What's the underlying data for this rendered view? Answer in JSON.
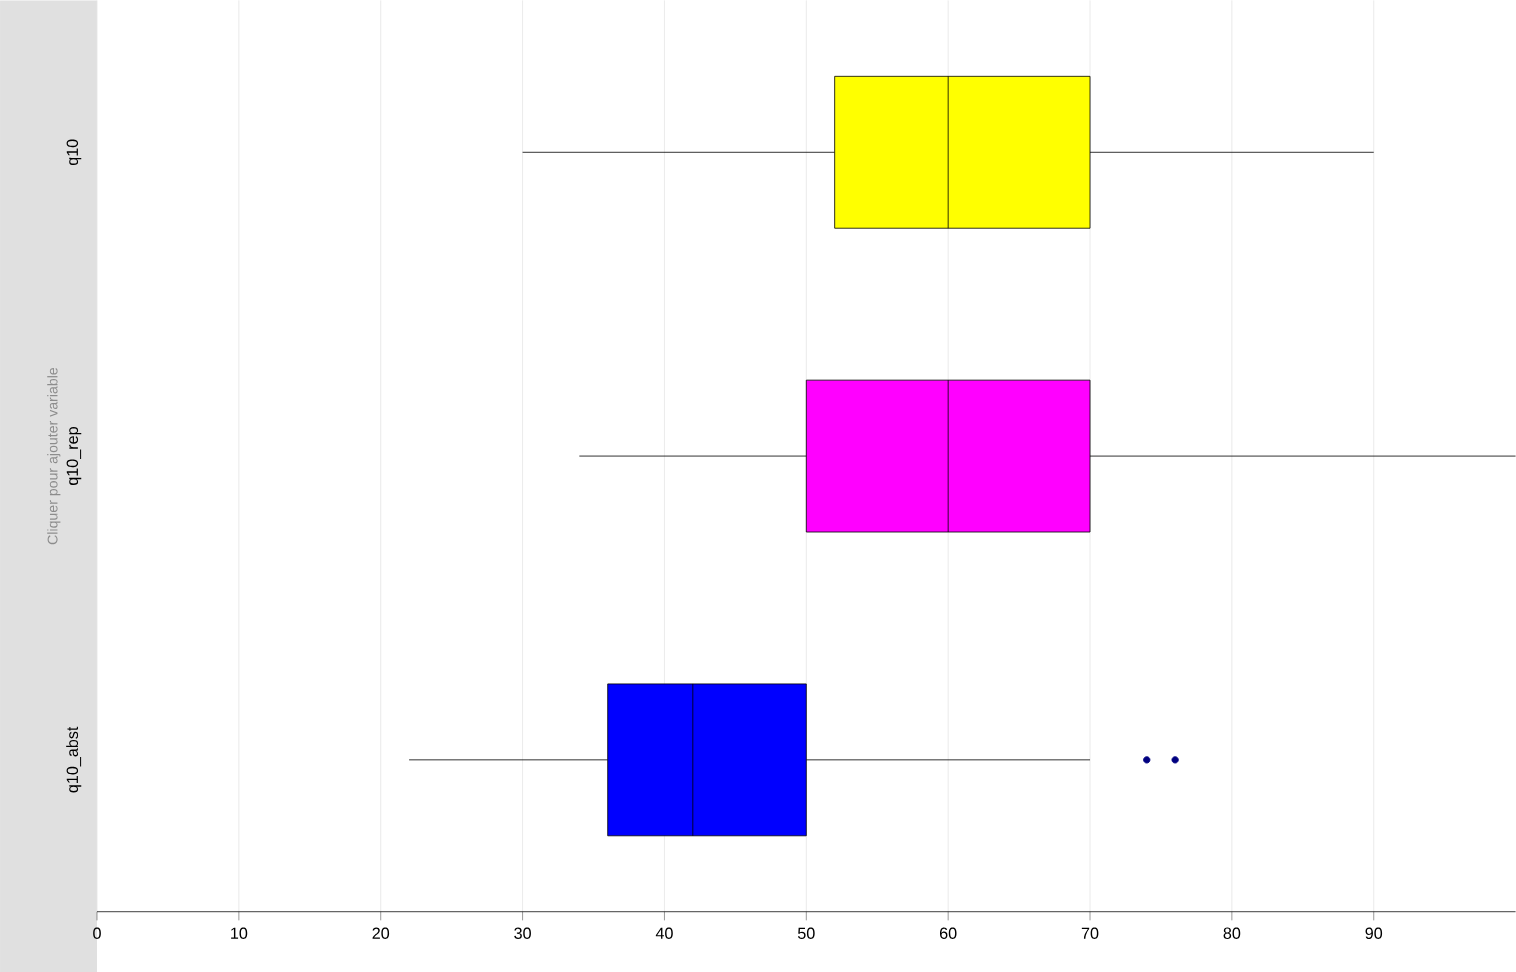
{
  "chart_data": {
    "type": "box",
    "orientation": "horizontal",
    "ylabel": "Cliquer pour ajouter variable",
    "categories": [
      "q10",
      "q10_rep",
      "q10_abst"
    ],
    "colors": [
      "#ffff00",
      "#ff00ff",
      "#0000ff"
    ],
    "boxes": [
      {
        "low": 30,
        "q1": 52,
        "median": 60,
        "q3": 70,
        "high": 90
      },
      {
        "low": 34,
        "q1": 50,
        "median": 60,
        "q3": 70,
        "high": 100
      },
      {
        "low": 22,
        "q1": 36,
        "median": 42,
        "q3": 50,
        "high": 70,
        "outliers": [
          74,
          76
        ]
      }
    ],
    "xlim": [
      0,
      100
    ],
    "xticks": [
      0,
      10,
      20,
      30,
      40,
      50,
      60,
      70,
      80,
      90
    ],
    "grid": "x"
  }
}
